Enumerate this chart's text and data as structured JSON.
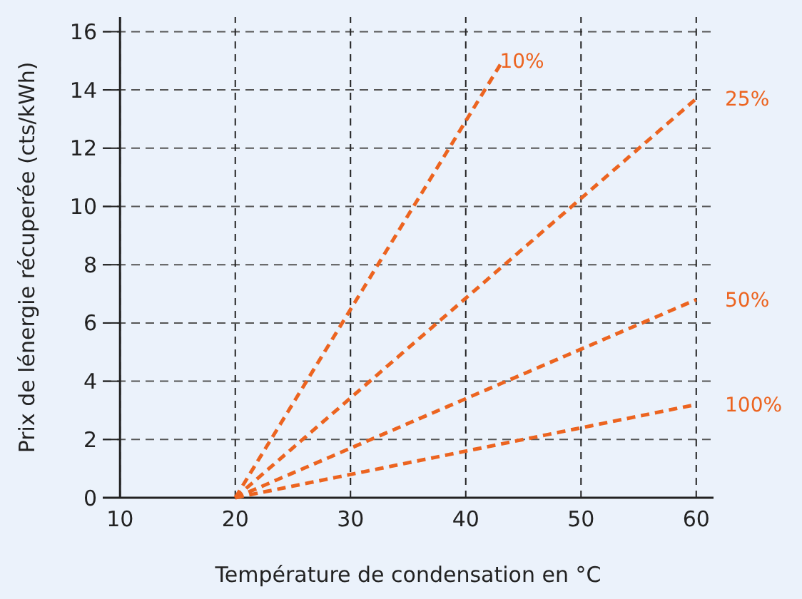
{
  "chart_data": {
    "type": "line",
    "xlabel": "Température de condensation en °C",
    "ylabel": "Prix de lénergie récuperée (cts/kWh)",
    "xlim": [
      8.5,
      61.5
    ],
    "ylim": [
      0,
      16.5
    ],
    "xticks": [
      10,
      20,
      30,
      40,
      50,
      60
    ],
    "yticks": [
      0,
      2,
      4,
      6,
      8,
      10,
      12,
      14,
      16
    ],
    "grid": true,
    "legend": false,
    "line_style": "dashed",
    "marker": "none",
    "series": [
      {
        "name": "10%",
        "color": "#ec6420",
        "x": [
          20,
          43.2
        ],
        "values": [
          0,
          15
        ]
      },
      {
        "name": "25%",
        "color": "#ec6420",
        "x": [
          20,
          60
        ],
        "values": [
          0,
          13.7
        ]
      },
      {
        "name": "50%",
        "color": "#ec6420",
        "x": [
          20,
          60
        ],
        "values": [
          0,
          6.8
        ]
      },
      {
        "name": "100%",
        "color": "#ec6420",
        "x": [
          20,
          60
        ],
        "values": [
          0,
          3.2
        ]
      }
    ]
  }
}
